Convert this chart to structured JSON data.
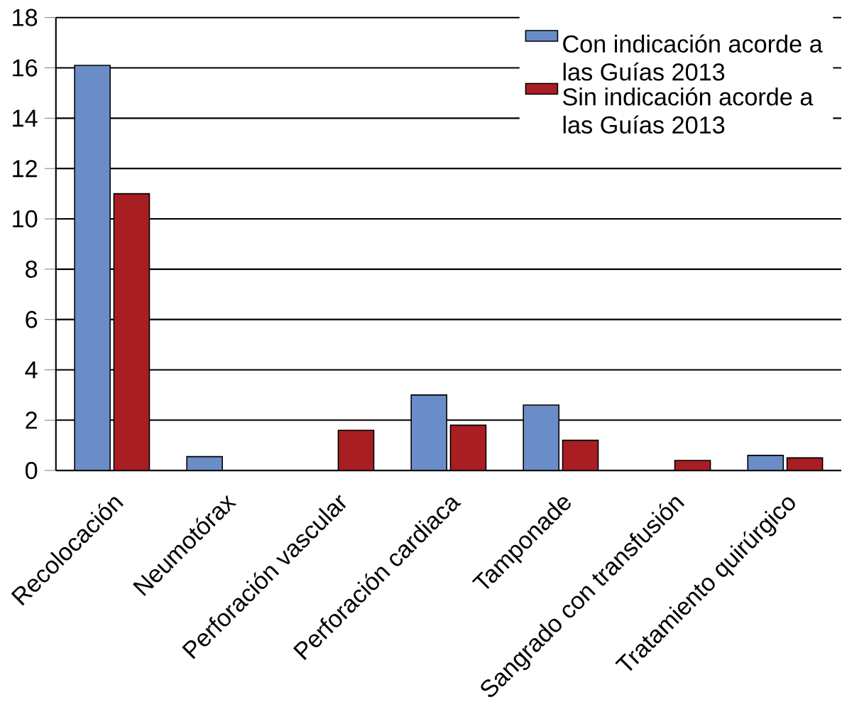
{
  "chart_data": {
    "type": "bar",
    "categories": [
      "Recolocación",
      "Neumotórax",
      "Perforación vascular",
      "Perforación cardiaca",
      "Tamponade",
      "Sangrado con transfusión",
      "Tratamiento quirúrgico"
    ],
    "series": [
      {
        "name": "Con indicación acorde a las Guías 2013",
        "color": "#6a8dc8",
        "values": [
          16.1,
          0.55,
          null,
          3.0,
          2.6,
          null,
          0.6
        ]
      },
      {
        "name": "Sin indicación acorde a las Guías 2013",
        "color": "#a81e23",
        "values": [
          11.0,
          null,
          1.6,
          1.8,
          1.2,
          0.4,
          0.5
        ]
      }
    ],
    "ylim": [
      0,
      18
    ],
    "yticks": [
      0,
      2,
      4,
      6,
      8,
      10,
      12,
      14,
      16,
      18
    ],
    "grid": "y",
    "legend": "top right"
  }
}
